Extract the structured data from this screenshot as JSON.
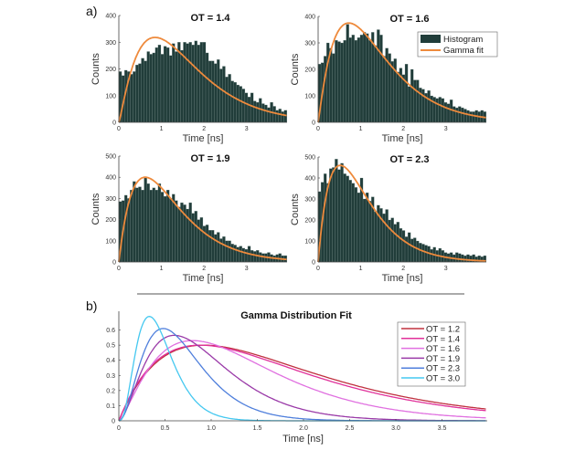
{
  "chart_data": [
    {
      "type": "bar",
      "panel_label": "a)",
      "title": "OT = 1.4",
      "xlabel": "Time [ns]",
      "ylabel": "Counts",
      "xlim": [
        0,
        3.95
      ],
      "ylim": [
        0,
        400
      ],
      "xticks": [
        "0",
        "1",
        "2",
        "3"
      ],
      "yticks": [
        "0",
        "100",
        "200",
        "300",
        "400"
      ],
      "bin_width": 0.0658,
      "histogram": [
        190,
        175,
        195,
        190,
        180,
        190,
        215,
        220,
        240,
        230,
        265,
        255,
        260,
        280,
        290,
        255,
        285,
        280,
        250,
        295,
        265,
        300,
        270,
        300,
        295,
        300,
        290,
        305,
        290,
        300,
        300,
        260,
        230,
        230,
        220,
        235,
        200,
        210,
        170,
        180,
        155,
        150,
        140,
        135,
        125,
        110,
        95,
        110,
        80,
        75,
        90,
        70,
        65,
        55,
        75,
        60,
        45,
        50,
        40,
        45
      ],
      "fit": {
        "name": "Gamma fit",
        "peak_x": 0.85,
        "peak_y": 318,
        "end_y": 22
      }
    },
    {
      "type": "bar",
      "title": "OT = 1.6",
      "xlabel": "Time [ns]",
      "ylabel": "Counts",
      "xlim": [
        0,
        3.95
      ],
      "ylim": [
        0,
        400
      ],
      "xticks": [
        "0",
        "1",
        "2",
        "3"
      ],
      "yticks": [
        "0",
        "100",
        "200",
        "300",
        "400"
      ],
      "bin_width": 0.0658,
      "histogram": [
        220,
        225,
        250,
        300,
        280,
        260,
        310,
        305,
        300,
        310,
        370,
        320,
        330,
        310,
        320,
        330,
        340,
        335,
        310,
        340,
        290,
        350,
        330,
        250,
        280,
        260,
        230,
        240,
        190,
        205,
        180,
        220,
        135,
        200,
        160,
        160,
        130,
        125,
        110,
        120,
        100,
        95,
        90,
        95,
        90,
        75,
        70,
        85,
        60,
        55,
        60,
        55,
        50,
        45,
        40,
        40,
        45,
        40,
        45,
        40
      ],
      "fit": {
        "name": "Gamma fit",
        "peak_x": 0.72,
        "peak_y": 375,
        "end_y": 20
      }
    },
    {
      "type": "bar",
      "title": "OT = 1.9",
      "xlabel": "Time [ns]",
      "ylabel": "Counts",
      "xlim": [
        0,
        3.95
      ],
      "ylim": [
        0,
        500
      ],
      "xticks": [
        "0",
        "1",
        "2",
        "3"
      ],
      "yticks": [
        "0",
        "100",
        "200",
        "300",
        "400",
        "500"
      ],
      "bin_width": 0.0658,
      "histogram": [
        285,
        290,
        315,
        300,
        340,
        380,
        350,
        355,
        340,
        400,
        370,
        340,
        350,
        340,
        370,
        330,
        310,
        340,
        300,
        320,
        290,
        260,
        280,
        270,
        250,
        280,
        230,
        240,
        200,
        210,
        170,
        175,
        150,
        150,
        130,
        140,
        110,
        120,
        100,
        100,
        85,
        80,
        70,
        75,
        65,
        60,
        75,
        55,
        50,
        55,
        45,
        40,
        40,
        45,
        35,
        30,
        35,
        40,
        30,
        30
      ],
      "fit": {
        "name": "Gamma fit",
        "peak_x": 0.62,
        "peak_y": 400,
        "end_y": 15
      }
    },
    {
      "type": "bar",
      "title": "OT = 2.3",
      "xlabel": "Time [ns]",
      "ylabel": "Counts",
      "xlim": [
        0,
        3.95
      ],
      "ylim": [
        0,
        500
      ],
      "xticks": [
        "0",
        "1",
        "2",
        "3"
      ],
      "yticks": [
        "0",
        "100",
        "200",
        "300",
        "400",
        "500"
      ],
      "bin_width": 0.0658,
      "histogram": [
        335,
        380,
        420,
        375,
        445,
        450,
        490,
        440,
        470,
        420,
        410,
        390,
        375,
        355,
        330,
        400,
        300,
        330,
        290,
        310,
        240,
        270,
        255,
        230,
        250,
        200,
        210,
        180,
        190,
        160,
        150,
        120,
        140,
        110,
        115,
        100,
        90,
        85,
        80,
        75,
        60,
        70,
        55,
        65,
        55,
        45,
        40,
        45,
        35,
        45,
        40,
        35,
        30,
        35,
        30,
        35,
        25,
        30,
        25,
        30
      ],
      "fit": {
        "name": "Gamma fit",
        "peak_x": 0.52,
        "peak_y": 460,
        "end_y": 12
      }
    },
    {
      "type": "line",
      "panel_label": "b)",
      "title": "Gamma Distribution Fit",
      "xlabel": "Time [ns]",
      "ylabel": "",
      "xlim": [
        0,
        3.99
      ],
      "ylim": [
        0,
        0.7
      ],
      "xticks": [
        "0",
        "0.5",
        "1.0",
        "1.5",
        "2.0",
        "2.5",
        "3.0",
        "3.5"
      ],
      "yticks": [
        "0",
        "0.1",
        "0.2",
        "0.3",
        "0.4",
        "0.5",
        "0.6"
      ],
      "legend_position": "top-right",
      "series": [
        {
          "name": "OT = 1.2",
          "color": "#c0303f",
          "shape": 2.0,
          "peak_x": 0.92,
          "peak_y": 0.5
        },
        {
          "name": "OT = 1.4",
          "color": "#e0309a",
          "shape": 2.0,
          "peak_x": 0.88,
          "peak_y": 0.5
        },
        {
          "name": "OT = 1.6",
          "color": "#e070e0",
          "shape": 2.4,
          "peak_x": 0.8,
          "peak_y": 0.53
        },
        {
          "name": "OT = 1.9",
          "color": "#9a3aa8",
          "shape": 2.8,
          "peak_x": 0.6,
          "peak_y": 0.565
        },
        {
          "name": "OT = 2.3",
          "color": "#4f7fdc",
          "shape": 3.2,
          "peak_x": 0.48,
          "peak_y": 0.61
        },
        {
          "name": "OT = 3.0",
          "color": "#45c8f0",
          "shape": 3.8,
          "peak_x": 0.33,
          "peak_y": 0.69
        }
      ]
    }
  ],
  "legend_a": {
    "histogram_label": "Histogram",
    "fit_label": "Gamma fit",
    "bar_color": "#213d3a",
    "fit_color": "#ee8a3c"
  }
}
